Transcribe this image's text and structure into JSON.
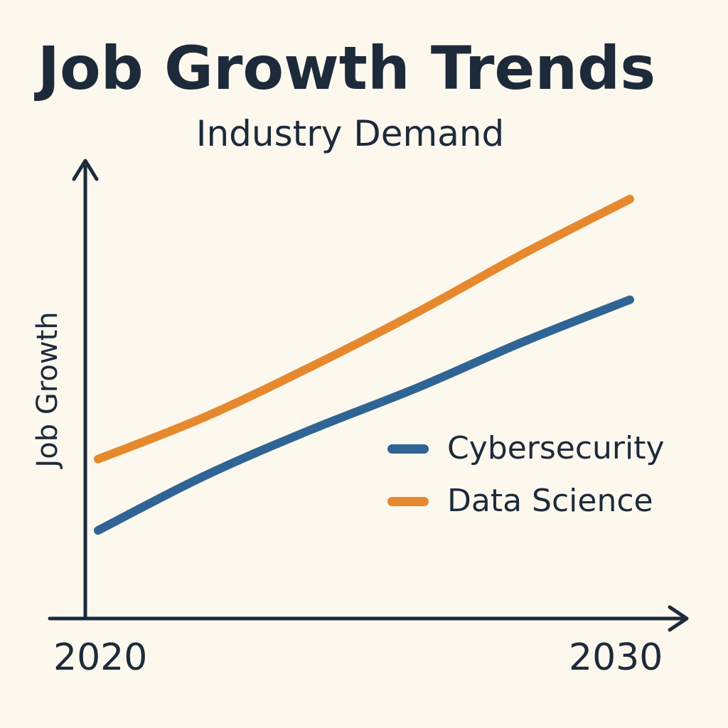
{
  "chart_data": {
    "type": "line",
    "title": "Job Growth Trends",
    "subtitle": "Industry Demand",
    "xlabel": "",
    "ylabel": "Job Growth",
    "x_tick_labels": [
      "2020",
      "2030"
    ],
    "xlim": [
      2020,
      2030
    ],
    "ylim": [
      0,
      10
    ],
    "grid": false,
    "legend_position": "right",
    "series": [
      {
        "name": "Cybersecurity",
        "color": "#2f6494",
        "x": [
          2020,
          2022,
          2024,
          2026,
          2028,
          2030
        ],
        "y": [
          2.1,
          3.4,
          4.5,
          5.5,
          6.6,
          7.6
        ]
      },
      {
        "name": "Data Science",
        "color": "#e6892e",
        "x": [
          2020,
          2022,
          2024,
          2026,
          2028,
          2030
        ],
        "y": [
          3.8,
          4.8,
          6.0,
          7.3,
          8.7,
          10.0
        ]
      }
    ]
  }
}
